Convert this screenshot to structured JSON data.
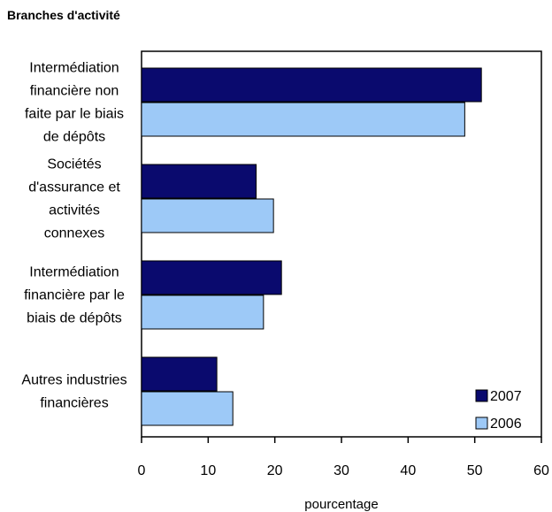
{
  "chart_data": {
    "type": "bar",
    "orientation": "horizontal",
    "title": "Branches d'activité",
    "xlabel": "pourcentage",
    "ylabel": "",
    "xlim": [
      0,
      60
    ],
    "xticks": [
      "0",
      "10",
      "20",
      "30",
      "40",
      "50",
      "60"
    ],
    "grid": false,
    "legend_position": "bottom-right",
    "categories": [
      [
        "Intermédiation",
        "financière non",
        "faite par le biais",
        "de dépôts"
      ],
      [
        "Sociétés",
        "d'assurance et",
        "activités",
        "connexes"
      ],
      [
        "Intermédiation",
        "financière par le",
        "biais de dépôts"
      ],
      [
        "Autres industries",
        "financières"
      ]
    ],
    "series": [
      {
        "name": "2007",
        "color": "#0a0a6e",
        "values": [
          51,
          17.2,
          21,
          11.3
        ]
      },
      {
        "name": "2006",
        "color": "#9dc9f7",
        "values": [
          48.5,
          19.8,
          18.3,
          13.7
        ]
      }
    ]
  }
}
